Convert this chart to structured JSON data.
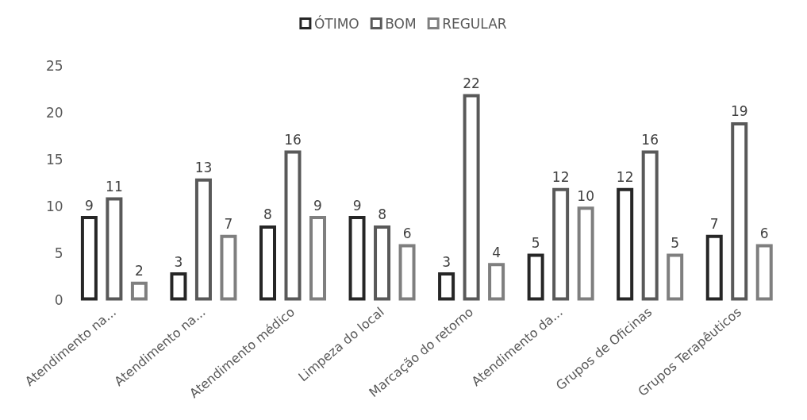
{
  "chart_data": {
    "type": "bar",
    "categories": [
      "Atendimento na...",
      "Atendimento na...",
      "Atendimento médico",
      "Limpeza do local",
      "Marcação do retorno",
      "Atendimento da...",
      "Grupos de Oficinas",
      "Grupos Terapêuticos"
    ],
    "series": [
      {
        "name": "ÓTIMO",
        "color": "#262626",
        "values": [
          9,
          3,
          8,
          9,
          3,
          5,
          12,
          7
        ]
      },
      {
        "name": "BOM",
        "color": "#595959",
        "values": [
          11,
          13,
          16,
          8,
          22,
          12,
          16,
          19
        ]
      },
      {
        "name": "REGULAR",
        "color": "#7f7f7f",
        "values": [
          2,
          7,
          9,
          6,
          4,
          10,
          5,
          6
        ]
      }
    ],
    "ylim": [
      0,
      25
    ],
    "yticks": [
      0,
      5,
      10,
      15,
      20,
      25
    ],
    "grid": false,
    "legend": "top",
    "data_labels": true
  }
}
